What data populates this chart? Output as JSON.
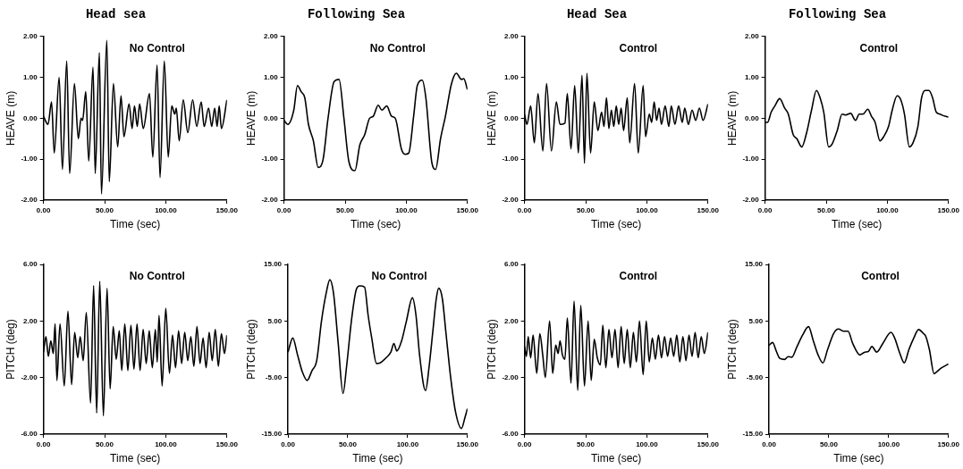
{
  "chart_data": [
    {
      "type": "line",
      "title": "Head sea",
      "annotations": [
        "No Control"
      ],
      "xlabel": "Time (sec)",
      "ylabel": "HEAVE (m)",
      "xlim": [
        0,
        150
      ],
      "xticks": [
        {
          "value": 0,
          "label": "0.00"
        },
        {
          "value": 50,
          "label": "50.00"
        },
        {
          "value": 100,
          "label": "100.00"
        },
        {
          "value": 150,
          "label": "150.00"
        }
      ],
      "ylim": [
        -2,
        2
      ],
      "yticks": [
        {
          "value": -2,
          "label": "-2.00"
        },
        {
          "value": -1,
          "label": "-1.00"
        },
        {
          "value": 0,
          "label": "0.00"
        },
        {
          "value": 1,
          "label": "1.00"
        },
        {
          "value": 2,
          "label": "2.00"
        }
      ],
      "x": [
        0,
        3.7,
        6.6,
        8.8,
        12.8,
        15.5,
        19,
        21.4,
        25.3,
        28.5,
        30.7,
        32,
        34.6,
        37,
        40.5,
        42.3,
        45.7,
        47.4,
        51.8,
        53.8,
        57.2,
        60.7,
        63.4,
        65.8,
        70,
        72.5,
        74.4,
        76.7,
        78.6,
        81.6,
        86.7,
        89.4,
        92.9,
        95.3,
        98.8,
        102,
        104.9,
        107.4,
        108.6,
        111,
        114.3,
        118,
        122,
        125.3,
        129,
        131.4,
        135,
        137.6,
        140,
        142,
        143.7,
        145.5,
        150
      ],
      "series": [
        {
          "color": "#000000",
          "values": [
            0.05,
            -0.15,
            0.4,
            -0.85,
            1.0,
            -1.25,
            1.4,
            -1.35,
            0.85,
            -0.5,
            0,
            -0.05,
            0.65,
            -1.05,
            1.25,
            -1.35,
            1.6,
            -1.85,
            1.9,
            -1.55,
            0.85,
            -0.7,
            0.55,
            -0.45,
            0.35,
            -0.25,
            0.3,
            -0.2,
            0.35,
            -0.25,
            0.6,
            -0.95,
            1.3,
            -1.45,
            1.4,
            -0.95,
            0.3,
            0.1,
            0.25,
            -0.55,
            0.45,
            -0.35,
            0.45,
            -0.2,
            0.4,
            -0.2,
            0.25,
            -0.2,
            0.25,
            -0.2,
            0.3,
            -0.25,
            0.45
          ]
        }
      ]
    },
    {
      "type": "line",
      "title": "Following Sea",
      "annotations": [
        "No Control"
      ],
      "xlabel": "Time (sec)",
      "ylabel": "HEAVE (m)",
      "xlim": [
        0,
        150
      ],
      "xticks": [
        {
          "value": 0,
          "label": "0.00"
        },
        {
          "value": 50,
          "label": "50.00"
        },
        {
          "value": 100,
          "label": "100.00"
        },
        {
          "value": 150,
          "label": "150.00"
        }
      ],
      "ylim": [
        -2,
        2
      ],
      "yticks": [
        {
          "value": -2,
          "label": "-2.00"
        },
        {
          "value": -1,
          "label": "-1.00"
        },
        {
          "value": 0,
          "label": "0.00"
        },
        {
          "value": 1,
          "label": "1.00"
        },
        {
          "value": 2,
          "label": "2.00"
        }
      ],
      "x": [
        0,
        3,
        8,
        11,
        14,
        17,
        20,
        24,
        28,
        32,
        36,
        41,
        45,
        49,
        53,
        58,
        62,
        66,
        70,
        73,
        77,
        80,
        84,
        88,
        91,
        96,
        99,
        102,
        106,
        109,
        113,
        116,
        121,
        124,
        128,
        132,
        137,
        141,
        145,
        147,
        150
      ],
      "series": [
        {
          "color": "#000000",
          "values": [
            -0.05,
            -0.15,
            0.2,
            0.8,
            0.65,
            0.5,
            -0.15,
            -0.55,
            -1.2,
            -1.0,
            0,
            0.9,
            0.95,
            0,
            -1.05,
            -1.28,
            -0.65,
            -0.4,
            0,
            0.05,
            0.32,
            0.2,
            0.3,
            0.05,
            0,
            -0.75,
            -0.88,
            -0.85,
            0.05,
            0.8,
            0.93,
            0.5,
            -1.1,
            -1.25,
            -0.5,
            0.05,
            0.85,
            1.1,
            0.95,
            0.97,
            0.7
          ]
        }
      ]
    },
    {
      "type": "line",
      "title": "Head Sea",
      "annotations": [
        "Control"
      ],
      "xlabel": "Time (sec)",
      "ylabel": "HEAVE (m)",
      "xlim": [
        0,
        150
      ],
      "xticks": [
        {
          "value": 0,
          "label": "0.00"
        },
        {
          "value": 50,
          "label": "50.00"
        },
        {
          "value": 100,
          "label": "100.00"
        },
        {
          "value": 150,
          "label": "150.00"
        }
      ],
      "ylim": [
        -2,
        2
      ],
      "yticks": [
        {
          "value": -2,
          "label": "-2.00"
        },
        {
          "value": -1,
          "label": "-1.00"
        },
        {
          "value": 0,
          "label": "0.00"
        },
        {
          "value": 1,
          "label": "1.00"
        },
        {
          "value": 2,
          "label": "2.00"
        }
      ],
      "x": [
        0,
        2,
        5,
        8,
        11,
        15,
        18,
        22,
        26,
        29,
        33,
        35,
        38,
        41,
        44,
        47,
        49,
        51,
        54,
        57,
        60,
        63,
        65,
        67,
        69,
        71,
        73,
        75,
        77,
        79,
        81,
        84,
        86,
        90,
        93,
        97,
        99,
        102,
        104,
        106,
        108,
        110,
        112,
        115,
        118,
        120,
        123,
        126,
        129,
        131,
        134,
        137,
        140,
        143,
        146,
        150
      ],
      "series": [
        {
          "color": "#000000",
          "values": [
            0.1,
            -0.15,
            0.3,
            -0.6,
            0.6,
            -0.8,
            0.85,
            -0.8,
            0.4,
            -0.15,
            -0.12,
            0.6,
            -0.75,
            0.8,
            -0.85,
            1.05,
            -1.1,
            1.1,
            -0.85,
            0.4,
            -0.3,
            0.15,
            -0.2,
            0.5,
            -0.25,
            0.2,
            -0.2,
            0.3,
            -0.15,
            0.25,
            -0.3,
            0.5,
            -0.6,
            0.85,
            -0.85,
            0.8,
            -0.45,
            0.1,
            -0.1,
            0.4,
            -0.05,
            0.25,
            -0.15,
            0.3,
            -0.2,
            0.3,
            -0.15,
            0.3,
            -0.1,
            0.25,
            -0.15,
            0.2,
            -0.05,
            0.25,
            -0.05,
            0.35
          ]
        }
      ]
    },
    {
      "type": "line",
      "title": "Following Sea",
      "annotations": [
        "Control"
      ],
      "xlabel": "Time (sec)",
      "ylabel": "HEAVE (m)",
      "xlim": [
        0,
        150
      ],
      "xticks": [
        {
          "value": 0,
          "label": "0.00"
        },
        {
          "value": 50,
          "label": "50.00"
        },
        {
          "value": 100,
          "label": "100.00"
        },
        {
          "value": 150,
          "label": "150.00"
        }
      ],
      "ylim": [
        -2,
        2
      ],
      "yticks": [
        {
          "value": -2,
          "label": "-2.00"
        },
        {
          "value": -1,
          "label": "-1.00"
        },
        {
          "value": 0,
          "label": "0.00"
        },
        {
          "value": 1,
          "label": "1.00"
        },
        {
          "value": 2,
          "label": "2.00"
        }
      ],
      "x": [
        0,
        2,
        5,
        8,
        12,
        16,
        19,
        23,
        26,
        30,
        34,
        38,
        42,
        45,
        48,
        52,
        55,
        59,
        63,
        66,
        70,
        74,
        77,
        80,
        84,
        87,
        90,
        94,
        97,
        101,
        104,
        108,
        111,
        114,
        118,
        121,
        125,
        128,
        131,
        134,
        137,
        140,
        143,
        147,
        150
      ],
      "series": [
        {
          "color": "#000000",
          "values": [
            -0.1,
            -0.1,
            0.15,
            0.3,
            0.48,
            0.25,
            0.1,
            -0.4,
            -0.5,
            -0.7,
            -0.35,
            0.2,
            0.68,
            0.5,
            0.15,
            -0.7,
            -0.62,
            -0.3,
            0.1,
            0.08,
            0.12,
            -0.05,
            0.1,
            0.1,
            0.22,
            0.05,
            -0.1,
            -0.55,
            -0.45,
            -0.2,
            0.2,
            0.55,
            0.45,
            0.1,
            -0.7,
            -0.6,
            -0.2,
            0.5,
            0.68,
            0.68,
            0.5,
            0.15,
            0.1,
            0.05,
            0.03
          ]
        }
      ]
    },
    {
      "type": "line",
      "annotations": [
        "No Control"
      ],
      "xlabel": "Time (sec)",
      "ylabel": "PITCH (deg)",
      "xlim": [
        0,
        150
      ],
      "xticks": [
        {
          "value": 0,
          "label": "0.00"
        },
        {
          "value": 50,
          "label": "50.00"
        },
        {
          "value": 100,
          "label": "100.00"
        },
        {
          "value": 150,
          "label": "150.00"
        }
      ],
      "ylim": [
        -6,
        6
      ],
      "yticks": [
        {
          "value": -6,
          "label": "-6.00"
        },
        {
          "value": -2,
          "label": "-2.00"
        },
        {
          "value": 2,
          "label": "2.00"
        },
        {
          "value": 6,
          "label": "6.00"
        }
      ],
      "x": [
        0,
        2,
        4,
        6,
        8,
        9.5,
        11,
        13.5,
        17,
        20,
        23,
        25.5,
        28,
        30,
        32.5,
        35,
        38.5,
        41,
        43.5,
        46,
        49,
        52,
        54.5,
        57,
        59.5,
        62,
        64,
        66.5,
        69,
        71.5,
        74,
        76.5,
        79,
        81.5,
        84,
        86.5,
        89,
        91.5,
        93,
        94.5,
        97,
        100,
        103,
        105.5,
        108,
        110.5,
        113,
        115.5,
        118,
        120.5,
        123,
        125.5,
        128,
        130.5,
        133,
        135.5,
        138,
        140.5,
        143,
        145.5,
        148,
        150
      ],
      "series": [
        {
          "color": "#000000",
          "values": [
            -0.2,
            0.9,
            -0.5,
            0.6,
            -0.3,
            1.8,
            -2.2,
            1.8,
            -2.6,
            2.7,
            -2.5,
            1.2,
            -0.6,
            0.9,
            -0.8,
            2.6,
            -3.8,
            4.5,
            -4.5,
            4.8,
            -4.7,
            4.3,
            -2.8,
            1.6,
            -0.7,
            1.3,
            -1.5,
            1.8,
            -1.5,
            1.7,
            -1.4,
            1.8,
            -1.5,
            1.4,
            -1.0,
            1.3,
            -1.3,
            1.4,
            -0.9,
            2.4,
            -2.6,
            2.9,
            -1.7,
            1.0,
            -1.3,
            1.3,
            -1.0,
            1.2,
            -0.8,
            0.9,
            -1.2,
            1.6,
            -1.0,
            0.8,
            -1.3,
            1.2,
            -0.8,
            1.4,
            -1.2,
            1.1,
            -0.3,
            1.0
          ]
        }
      ]
    },
    {
      "type": "line",
      "annotations": [
        "No Control"
      ],
      "xlabel": "Time (sec)",
      "ylabel": "PITCH (deg)",
      "xlim": [
        0,
        150
      ],
      "xticks": [
        {
          "value": 0,
          "label": "0.00"
        },
        {
          "value": 50,
          "label": "50.00"
        },
        {
          "value": 100,
          "label": "100.00"
        },
        {
          "value": 150,
          "label": "150.00"
        }
      ],
      "ylim": [
        -15,
        15
      ],
      "yticks": [
        {
          "value": -15,
          "label": "-15.00"
        },
        {
          "value": -5,
          "label": "-5.00"
        },
        {
          "value": 5,
          "label": "5.00"
        },
        {
          "value": 15,
          "label": "15.00"
        }
      ],
      "x": [
        0,
        4,
        8,
        12,
        16,
        20,
        24,
        28,
        32,
        35,
        38,
        42,
        46,
        49,
        53,
        57,
        60,
        64,
        67,
        70,
        74,
        77,
        82,
        86,
        88.5,
        91,
        95,
        99,
        104,
        107,
        110,
        115,
        118,
        121,
        124,
        126,
        129,
        132,
        136,
        140,
        145,
        148,
        150
      ],
      "series": [
        {
          "color": "#000000",
          "values": [
            -0.5,
            2.0,
            -1,
            -4,
            -5.5,
            -3.8,
            -2,
            5,
            10,
            12.3,
            10,
            1,
            -7.8,
            -3,
            5,
            10.5,
            11.2,
            11,
            6,
            2,
            -2.5,
            -2.4,
            -1.5,
            -0.5,
            1.0,
            -0.3,
            1.5,
            5,
            9.1,
            6,
            -1,
            -7.3,
            -3,
            3,
            9,
            10.8,
            9,
            3,
            -5,
            -11,
            -14,
            -12,
            -10.5
          ]
        }
      ]
    },
    {
      "type": "line",
      "annotations": [
        "Control"
      ],
      "xlabel": "Time (sec)",
      "ylabel": "PITCH (deg)",
      "xlim": [
        0,
        150
      ],
      "xticks": [
        {
          "value": 0,
          "label": "0.00"
        },
        {
          "value": 50,
          "label": "50.00"
        },
        {
          "value": 100,
          "label": "100.00"
        },
        {
          "value": 150,
          "label": "150.00"
        }
      ],
      "ylim": [
        -6,
        6
      ],
      "yticks": [
        {
          "value": -6,
          "label": "-6.00"
        },
        {
          "value": -2,
          "label": "-2.00"
        },
        {
          "value": 2,
          "label": "2.00"
        },
        {
          "value": 6,
          "label": "6.00"
        }
      ],
      "x": [
        0,
        1.5,
        3,
        5,
        7,
        10,
        12.5,
        15,
        17,
        20.5,
        23,
        25.5,
        27.5,
        29,
        31,
        33,
        35,
        38,
        40.5,
        43.5,
        46,
        49,
        52,
        54.5,
        57,
        59.5,
        62,
        64,
        66.5,
        69,
        71.5,
        74,
        76.5,
        79,
        81.5,
        84,
        86.5,
        89,
        91.5,
        94,
        97,
        99.5,
        102,
        104.5,
        107,
        109.5,
        112,
        114.5,
        117,
        119.5,
        122,
        124.5,
        127,
        129.5,
        132,
        134.5,
        137,
        139.5,
        142,
        144.5,
        147,
        150
      ],
      "series": [
        {
          "color": "#000000",
          "values": [
            0.2,
            -0.5,
            0.9,
            -0.6,
            1.0,
            -1.7,
            1.1,
            -0.5,
            -2.0,
            2.0,
            -1.7,
            0.3,
            -0.3,
            0.6,
            -0.4,
            -0.7,
            2.2,
            -2.4,
            3.4,
            -2.9,
            3.1,
            -2.6,
            2.0,
            -2.2,
            0.7,
            -0.6,
            -1.1,
            1.7,
            -1.3,
            1.4,
            -0.6,
            1.4,
            -1.3,
            1.6,
            -1.0,
            1.4,
            -1.3,
            1.2,
            -0.9,
            2.0,
            -1.8,
            2.0,
            -0.9,
            0.8,
            -0.7,
            1.0,
            -0.6,
            0.9,
            -0.5,
            0.8,
            -0.5,
            1.0,
            -0.9,
            0.9,
            -0.8,
            1.0,
            -0.5,
            1.2,
            -0.6,
            0.9,
            -0.3,
            1.2
          ]
        }
      ]
    },
    {
      "type": "line",
      "annotations": [
        "Control"
      ],
      "xlabel": "Time (sec)",
      "ylabel": "PITCH (deg)",
      "xlim": [
        0,
        150
      ],
      "xticks": [
        {
          "value": 0,
          "label": "0.00"
        },
        {
          "value": 50,
          "label": "50.00"
        },
        {
          "value": 100,
          "label": "100.00"
        },
        {
          "value": 150,
          "label": "150.00"
        }
      ],
      "ylim": [
        -15,
        15
      ],
      "yticks": [
        {
          "value": -15,
          "label": "-15.00"
        },
        {
          "value": -5,
          "label": "-5.00"
        },
        {
          "value": 5,
          "label": "5.00"
        },
        {
          "value": 15,
          "label": "15.00"
        }
      ],
      "x": [
        0,
        3,
        6,
        9,
        13,
        16,
        19,
        23,
        28,
        33,
        37,
        41,
        45,
        49,
        54,
        58,
        62,
        66,
        70,
        76,
        80,
        83,
        86,
        90,
        95,
        102,
        105,
        109,
        113,
        117,
        121,
        125,
        129,
        131,
        134,
        138,
        140,
        144,
        150
      ],
      "series": [
        {
          "color": "#000000",
          "values": [
            0.7,
            1.2,
            -0.3,
            -1.6,
            -1.8,
            -1.3,
            -1.4,
            0.3,
            2.5,
            4.0,
            1.5,
            -1.0,
            -2.4,
            0,
            2.8,
            3.6,
            3.2,
            3.2,
            1.0,
            -1.0,
            -0.5,
            -0.4,
            0.5,
            -0.5,
            1.0,
            3.0,
            2.0,
            -0.5,
            -2.4,
            0,
            2.0,
            3.5,
            2.8,
            2.3,
            0,
            -4.3,
            -4.0,
            -3.3,
            -2.6
          ]
        }
      ]
    }
  ]
}
